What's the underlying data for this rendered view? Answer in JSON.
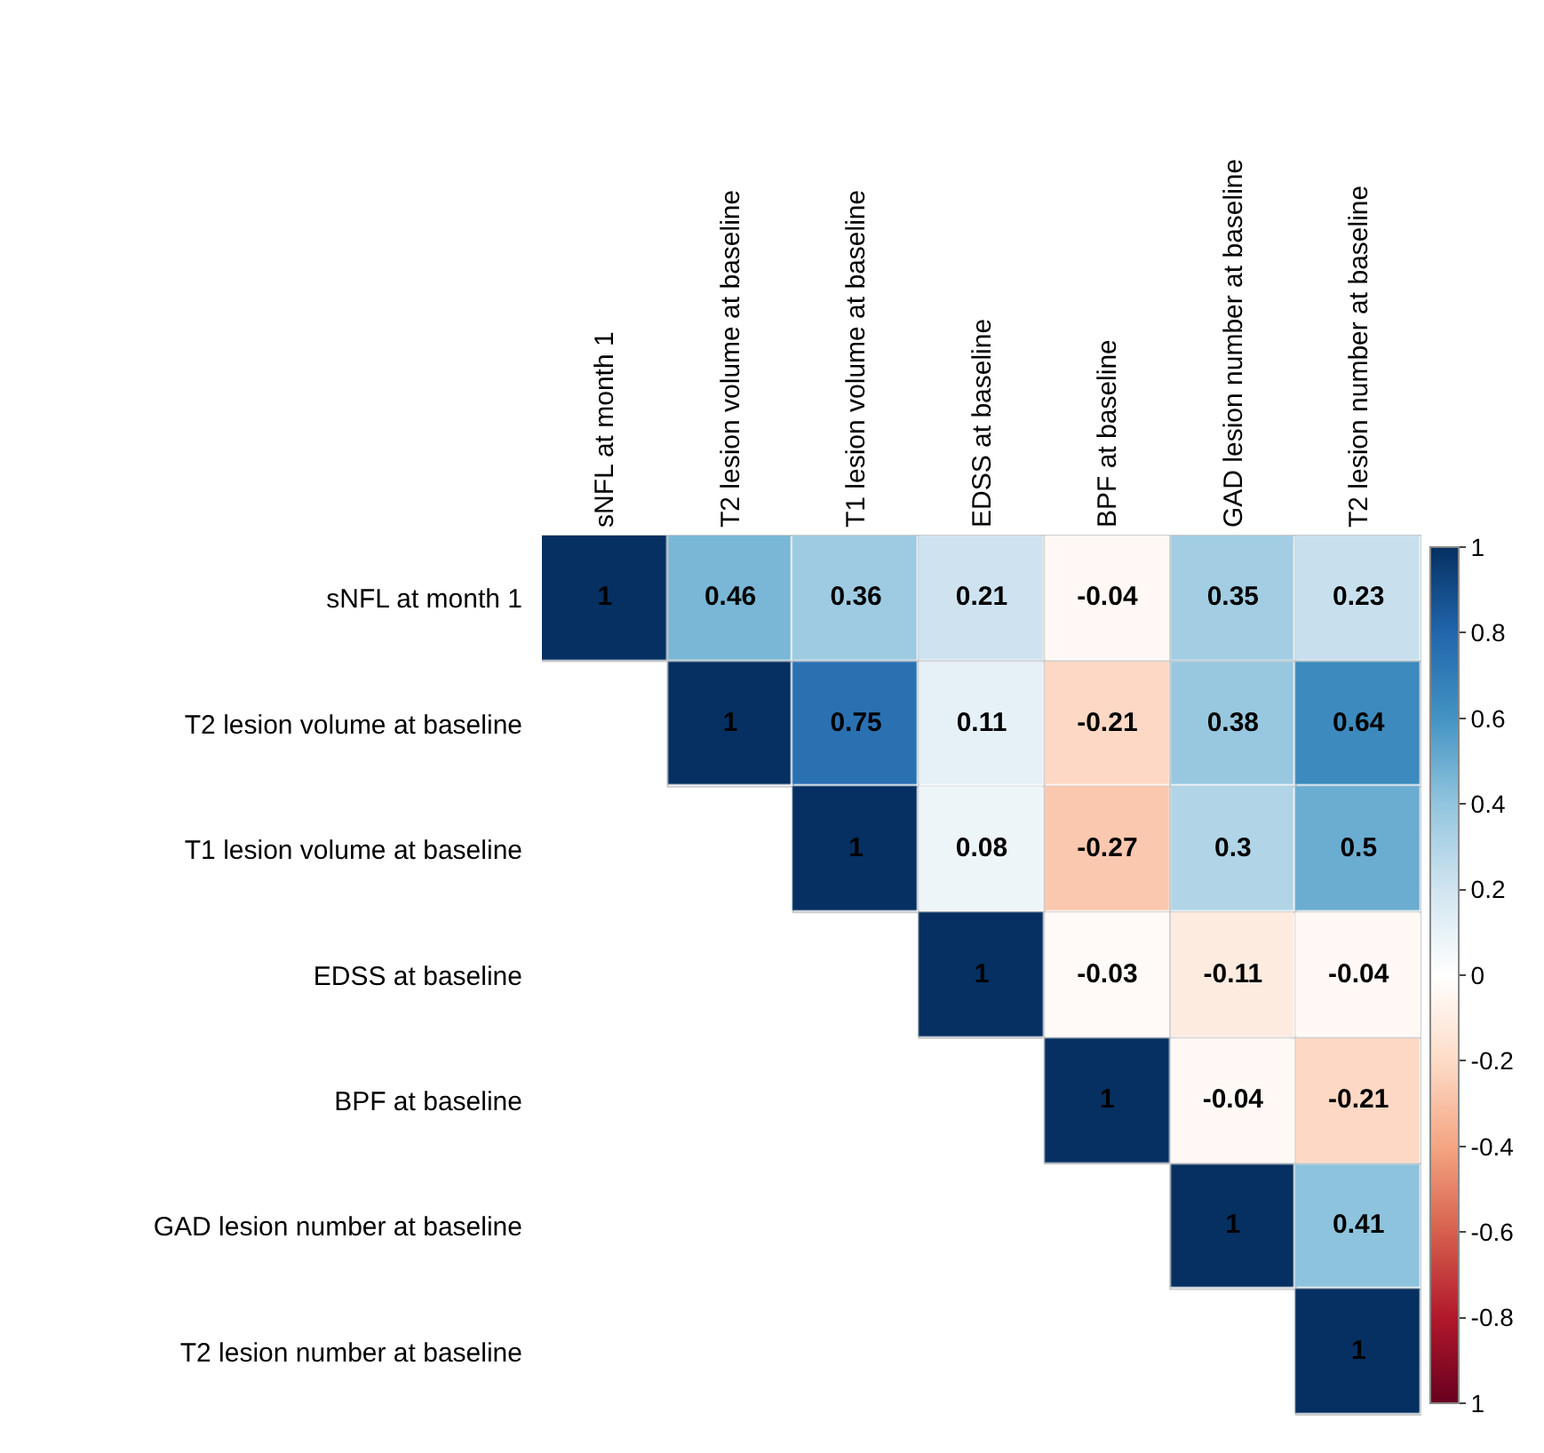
{
  "chart_data": {
    "type": "heatmap",
    "categories": [
      "sNFL at month 1",
      "T2 lesion volume at baseline",
      "T1 lesion volume at baseline",
      "EDSS at baseline",
      "BPF at baseline",
      "GAD lesion number at baseline",
      "T2 lesion number at baseline"
    ],
    "y_categories": [
      "sNFL at month 1",
      "T2 lesion volume at baseline",
      "T1 lesion volume at baseline",
      "EDSS at baseline",
      "BPF at baseline",
      "GAD lesion number at baseline",
      "T2 lesion number at baseline"
    ],
    "cells": [
      [
        1,
        0.46,
        0.36,
        0.21,
        -0.04,
        0.35,
        0.23
      ],
      [
        null,
        1,
        0.75,
        0.11,
        -0.21,
        0.38,
        0.64
      ],
      [
        null,
        null,
        1,
        0.08,
        -0.27,
        0.3,
        0.5
      ],
      [
        null,
        null,
        null,
        1,
        -0.03,
        -0.11,
        -0.04
      ],
      [
        null,
        null,
        null,
        null,
        1,
        -0.04,
        -0.21
      ],
      [
        null,
        null,
        null,
        null,
        null,
        1,
        0.41
      ],
      [
        null,
        null,
        null,
        null,
        null,
        null,
        1
      ]
    ],
    "clim": [
      -1,
      1
    ],
    "cticks": [
      1,
      0.8,
      0.6,
      0.4,
      0.2,
      0,
      -0.2,
      -0.4,
      -0.6,
      -0.8,
      {
        "value": -1,
        "label": "1"
      }
    ],
    "data_labels": true
  }
}
